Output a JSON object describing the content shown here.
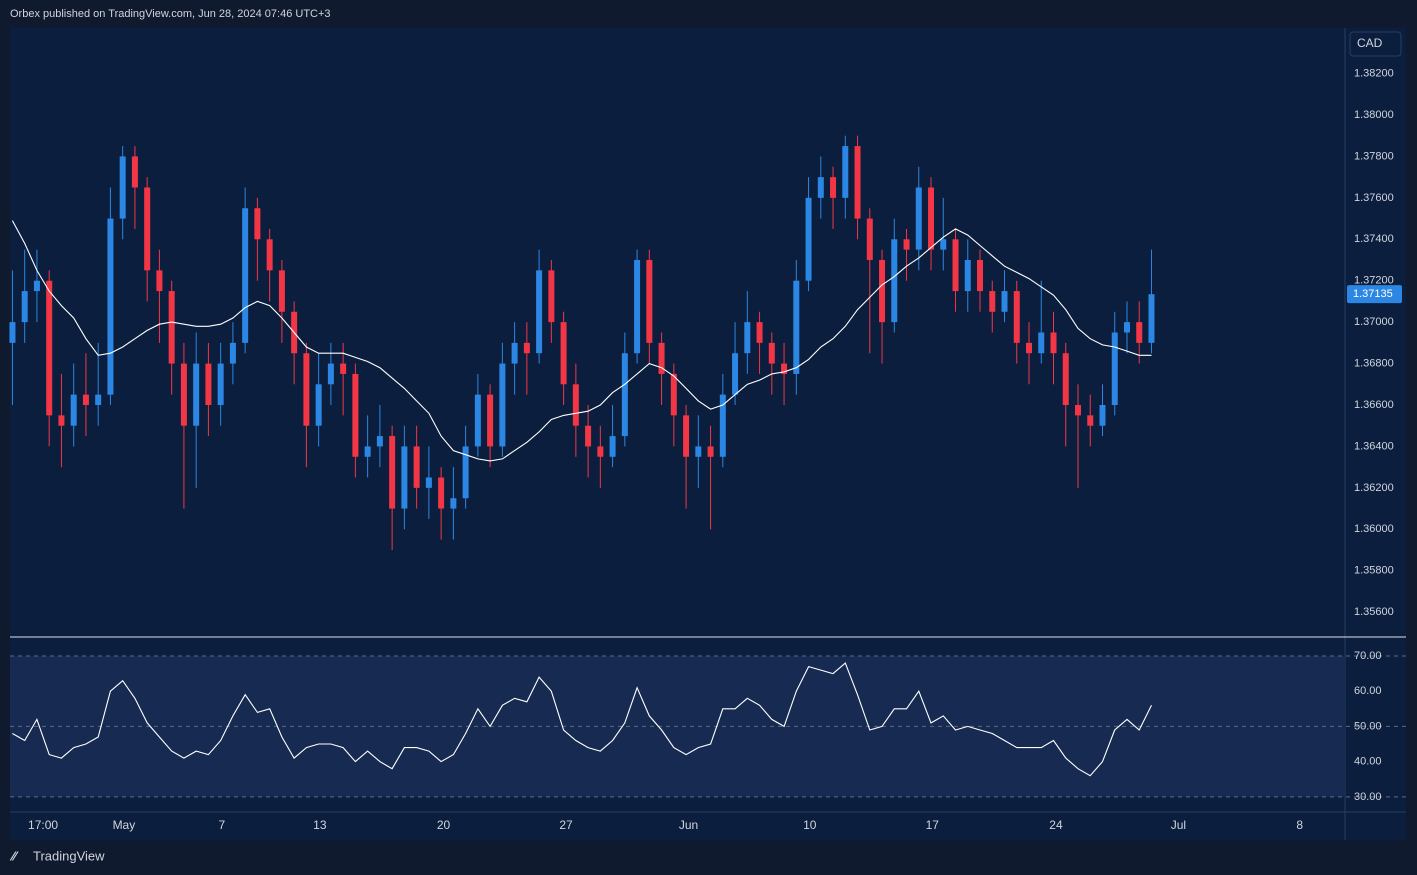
{
  "header": "Orbex published on TradingView.com, Jun 28, 2024 07:46 UTC+3",
  "footer": "TradingView",
  "chart_data": [
    {
      "type": "candlestick",
      "currency": "CAD",
      "grid": false,
      "up_color": "#2b87e3",
      "down_color": "#f23645",
      "xlim": [
        -0.2,
        108.8
      ],
      "ylim": [
        1.3548,
        1.3842
      ],
      "yticks": [
        {
          "value": 1.382,
          "label": "1.38200"
        },
        {
          "value": 1.38,
          "label": "1.38000"
        },
        {
          "value": 1.378,
          "label": "1.37800"
        },
        {
          "value": 1.376,
          "label": "1.37600"
        },
        {
          "value": 1.374,
          "label": "1.37400"
        },
        {
          "value": 1.372,
          "label": "1.37200"
        },
        {
          "value": 1.37,
          "label": "1.37000"
        },
        {
          "value": 1.368,
          "label": "1.36800"
        },
        {
          "value": 1.366,
          "label": "1.36600"
        },
        {
          "value": 1.364,
          "label": "1.36400"
        },
        {
          "value": 1.362,
          "label": "1.36200"
        },
        {
          "value": 1.36,
          "label": "1.36000"
        },
        {
          "value": 1.358,
          "label": "1.35800"
        },
        {
          "value": 1.356,
          "label": "1.35600"
        }
      ],
      "xticks": [
        {
          "value": 2.5,
          "label": "17:00"
        },
        {
          "value": 9.1,
          "label": "May"
        },
        {
          "value": 17.1,
          "label": "7"
        },
        {
          "value": 25.1,
          "label": "13"
        },
        {
          "value": 35.2,
          "label": "20"
        },
        {
          "value": 45.2,
          "label": "27"
        },
        {
          "value": 55.2,
          "label": "Jun"
        },
        {
          "value": 65.1,
          "label": "10"
        },
        {
          "value": 75.1,
          "label": "17"
        },
        {
          "value": 85.2,
          "label": "24"
        },
        {
          "value": 95.2,
          "label": "Jul"
        },
        {
          "value": 105.1,
          "label": "8"
        }
      ],
      "open": [
        1.369,
        1.37,
        1.3715,
        1.372,
        1.3655,
        1.365,
        1.3665,
        1.366,
        1.3665,
        1.375,
        1.378,
        1.3765,
        1.3725,
        1.3715,
        1.368,
        1.365,
        1.368,
        1.366,
        1.368,
        1.369,
        1.3755,
        1.374,
        1.3725,
        1.3705,
        1.3685,
        1.365,
        1.367,
        1.368,
        1.3675,
        1.3635,
        1.364,
        1.3645,
        1.361,
        1.364,
        1.362,
        1.3625,
        1.361,
        1.3615,
        1.364,
        1.3665,
        1.364,
        1.368,
        1.369,
        1.3685,
        1.3725,
        1.37,
        1.367,
        1.365,
        1.364,
        1.3635,
        1.3645,
        1.3685,
        1.373,
        1.369,
        1.3675,
        1.3655,
        1.3635,
        1.364,
        1.3635,
        1.3665,
        1.3685,
        1.37,
        1.369,
        1.368,
        1.3675,
        1.372,
        1.376,
        1.377,
        1.376,
        1.3785,
        1.375,
        1.373,
        1.37,
        1.374,
        1.3735,
        1.3765,
        1.3735,
        1.374,
        1.3715,
        1.373,
        1.3715,
        1.3705,
        1.3715,
        1.369,
        1.3685,
        1.3695,
        1.3685,
        1.366,
        1.3655,
        1.365,
        1.366,
        1.3695,
        1.37,
        1.369
      ],
      "high": [
        1.3725,
        1.3735,
        1.3735,
        1.3725,
        1.3675,
        1.368,
        1.3685,
        1.369,
        1.3765,
        1.3785,
        1.3785,
        1.377,
        1.3735,
        1.372,
        1.369,
        1.3695,
        1.369,
        1.369,
        1.37,
        1.3765,
        1.376,
        1.3745,
        1.373,
        1.371,
        1.369,
        1.3685,
        1.369,
        1.369,
        1.368,
        1.3655,
        1.366,
        1.365,
        1.365,
        1.365,
        1.364,
        1.363,
        1.363,
        1.365,
        1.3675,
        1.367,
        1.369,
        1.37,
        1.37,
        1.3735,
        1.373,
        1.3705,
        1.368,
        1.366,
        1.365,
        1.366,
        1.3695,
        1.3735,
        1.3735,
        1.3695,
        1.368,
        1.366,
        1.3655,
        1.365,
        1.3675,
        1.37,
        1.3715,
        1.3705,
        1.3695,
        1.369,
        1.373,
        1.377,
        1.378,
        1.3775,
        1.379,
        1.379,
        1.3755,
        1.3735,
        1.375,
        1.3745,
        1.3775,
        1.377,
        1.376,
        1.3745,
        1.374,
        1.3735,
        1.372,
        1.3725,
        1.372,
        1.37,
        1.372,
        1.3705,
        1.369,
        1.367,
        1.3665,
        1.367,
        1.3705,
        1.371,
        1.371,
        1.3735
      ],
      "low": [
        1.366,
        1.369,
        1.37,
        1.364,
        1.363,
        1.364,
        1.3645,
        1.365,
        1.366,
        1.374,
        1.3745,
        1.371,
        1.369,
        1.3665,
        1.361,
        1.362,
        1.3645,
        1.365,
        1.367,
        1.3685,
        1.372,
        1.371,
        1.369,
        1.367,
        1.363,
        1.364,
        1.366,
        1.3655,
        1.3625,
        1.3625,
        1.363,
        1.359,
        1.36,
        1.361,
        1.3605,
        1.3595,
        1.3595,
        1.361,
        1.3635,
        1.363,
        1.3635,
        1.3665,
        1.3665,
        1.368,
        1.369,
        1.366,
        1.3635,
        1.3625,
        1.362,
        1.363,
        1.364,
        1.368,
        1.368,
        1.366,
        1.364,
        1.361,
        1.362,
        1.36,
        1.363,
        1.366,
        1.3675,
        1.3675,
        1.3665,
        1.366,
        1.3665,
        1.3715,
        1.375,
        1.3745,
        1.375,
        1.374,
        1.3685,
        1.368,
        1.3695,
        1.372,
        1.3725,
        1.3725,
        1.3725,
        1.3705,
        1.3705,
        1.3705,
        1.3695,
        1.37,
        1.368,
        1.367,
        1.368,
        1.367,
        1.364,
        1.362,
        1.364,
        1.3645,
        1.3655,
        1.3685,
        1.368,
        1.3685
      ],
      "close": [
        1.37,
        1.3715,
        1.372,
        1.3655,
        1.365,
        1.3665,
        1.366,
        1.3665,
        1.375,
        1.378,
        1.3765,
        1.3725,
        1.3715,
        1.368,
        1.365,
        1.368,
        1.366,
        1.368,
        1.369,
        1.3755,
        1.374,
        1.3725,
        1.3705,
        1.3685,
        1.365,
        1.367,
        1.368,
        1.3675,
        1.3635,
        1.364,
        1.3645,
        1.361,
        1.364,
        1.362,
        1.3625,
        1.361,
        1.3615,
        1.364,
        1.3665,
        1.364,
        1.368,
        1.369,
        1.3685,
        1.3725,
        1.37,
        1.367,
        1.365,
        1.364,
        1.3635,
        1.3645,
        1.3685,
        1.373,
        1.369,
        1.3675,
        1.3655,
        1.3635,
        1.364,
        1.3635,
        1.3665,
        1.3685,
        1.37,
        1.369,
        1.368,
        1.3675,
        1.372,
        1.376,
        1.377,
        1.376,
        1.3785,
        1.375,
        1.373,
        1.37,
        1.374,
        1.3735,
        1.3765,
        1.3735,
        1.374,
        1.3715,
        1.373,
        1.3715,
        1.3705,
        1.3715,
        1.369,
        1.3685,
        1.3695,
        1.3685,
        1.366,
        1.3655,
        1.365,
        1.366,
        1.3695,
        1.37,
        1.369,
        1.37135
      ],
      "series": [
        {
          "color": "#ffffff",
          "values": [
            1.3749,
            1.3738,
            1.3725,
            1.3715,
            1.3708,
            1.3702,
            1.3692,
            1.3684,
            1.3685,
            1.3688,
            1.3692,
            1.3696,
            1.3699,
            1.37,
            1.3699,
            1.3698,
            1.3698,
            1.3699,
            1.3702,
            1.3707,
            1.371,
            1.3708,
            1.3702,
            1.3695,
            1.3688,
            1.3685,
            1.3685,
            1.3685,
            1.3683,
            1.3681,
            1.3678,
            1.3673,
            1.3668,
            1.3662,
            1.3656,
            1.3645,
            1.3638,
            1.3636,
            1.3634,
            1.3633,
            1.3634,
            1.3638,
            1.3642,
            1.3647,
            1.3653,
            1.3655,
            1.3656,
            1.3657,
            1.366,
            1.3666,
            1.367,
            1.3675,
            1.368,
            1.3678,
            1.3674,
            1.3668,
            1.3662,
            1.3658,
            1.366,
            1.3665,
            1.367,
            1.3672,
            1.3675,
            1.3676,
            1.3678,
            1.3682,
            1.3688,
            1.3692,
            1.3698,
            1.3706,
            1.3712,
            1.3718,
            1.3722,
            1.3727,
            1.3731,
            1.3736,
            1.3741,
            1.3745,
            1.3742,
            1.3737,
            1.3732,
            1.3727,
            1.3724,
            1.3721,
            1.3717,
            1.3713,
            1.3706,
            1.3697,
            1.3692,
            1.3689,
            1.3688,
            1.3686,
            1.3684,
            1.3684
          ]
        }
      ]
    },
    {
      "type": "line",
      "grid": true,
      "ylim": [
        25.7,
        75.4
      ],
      "yticks": [
        {
          "value": 30,
          "label": "30.00"
        },
        {
          "value": 40,
          "label": "40.00"
        },
        {
          "value": 50,
          "label": "50.00"
        },
        {
          "value": 60,
          "label": "60.00"
        },
        {
          "value": 70,
          "label": "70.00"
        }
      ],
      "band": [
        30,
        70
      ],
      "dashed": [
        30,
        50,
        70
      ],
      "series": [
        {
          "color": "#ffffff",
          "values": [
            48,
            46,
            52,
            42,
            41,
            44,
            45,
            47,
            60,
            63,
            58,
            51,
            47,
            43,
            41,
            43,
            42,
            46,
            53,
            59,
            54,
            55,
            47,
            41,
            44,
            45,
            45,
            44,
            40,
            43,
            40,
            38,
            44,
            44,
            43,
            40,
            42,
            48,
            55,
            50,
            56,
            58,
            57,
            64,
            60,
            49,
            46,
            44,
            43,
            46,
            51,
            61,
            53,
            49,
            44,
            42,
            44,
            45,
            55,
            55,
            58,
            56,
            52,
            50,
            60,
            67,
            66,
            65,
            68,
            59,
            49,
            50,
            55,
            55,
            60,
            51,
            53,
            49,
            50,
            49,
            48,
            46,
            44,
            44,
            44,
            46,
            41,
            38,
            36,
            40,
            49,
            52,
            49,
            56
          ]
        }
      ]
    }
  ]
}
